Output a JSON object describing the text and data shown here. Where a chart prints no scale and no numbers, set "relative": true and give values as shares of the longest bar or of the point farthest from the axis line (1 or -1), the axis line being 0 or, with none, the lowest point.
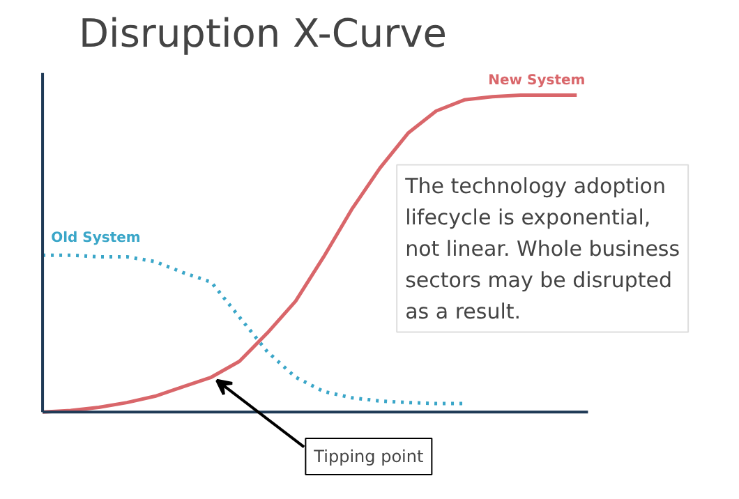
{
  "chart_data": {
    "type": "line",
    "title": "Disruption X-Curve",
    "relative": true,
    "categories": [
      null,
      null,
      null,
      null,
      null,
      null,
      null,
      null,
      null,
      null,
      null,
      null,
      null,
      null,
      null,
      null,
      null,
      null,
      null,
      null
    ],
    "series": [
      {
        "name": "Old System",
        "color": "#3aa6c8",
        "line_style": "dotted",
        "values": [
          0.495,
          0.495,
          0.49,
          0.49,
          0.475,
          0.44,
          0.41,
          0.3,
          0.19,
          0.11,
          0.065,
          0.045,
          0.035,
          0.03,
          0.027,
          0.027,
          null,
          null,
          null,
          null
        ]
      },
      {
        "name": "New System",
        "color": "#d9666a",
        "line_style": "solid",
        "values": [
          0,
          0.005,
          0.015,
          0.03,
          0.05,
          0.08,
          0.11,
          0.16,
          0.25,
          0.35,
          0.49,
          0.64,
          0.77,
          0.88,
          0.95,
          0.985,
          0.995,
          1,
          1,
          1
        ]
      }
    ],
    "annotations": [
      "The technology adoption\nlifecycle is exponential,\nnot linear. Whole business\nsectors may be disrupted\nas a result.",
      "Tipping point"
    ]
  }
}
